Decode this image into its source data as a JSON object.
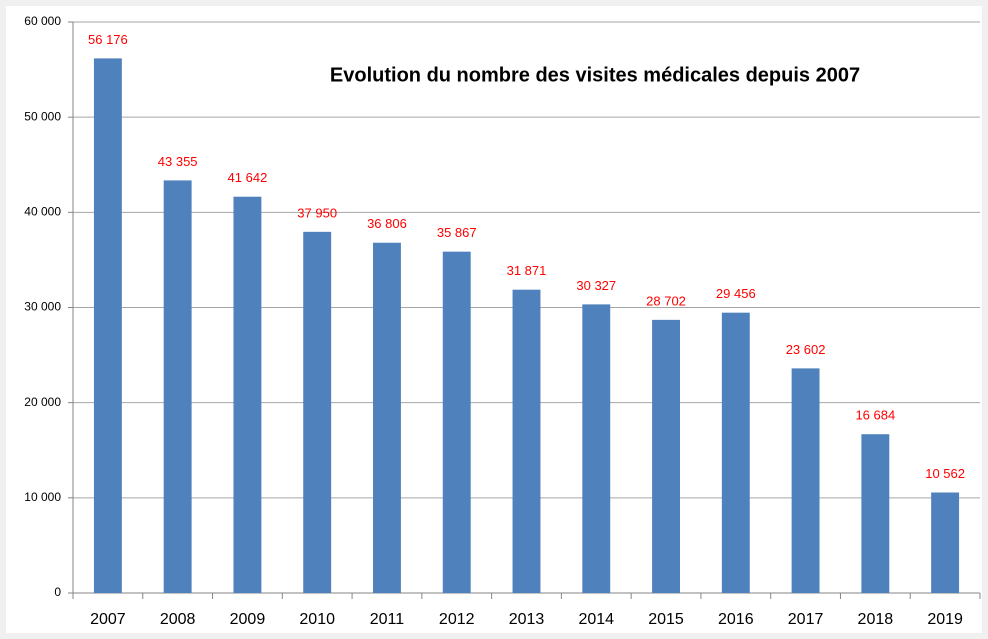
{
  "chart_data": {
    "type": "bar",
    "title": "Evolution du nombre des visites médicales depuis 2007",
    "categories": [
      "2007",
      "2008",
      "2009",
      "2010",
      "2011",
      "2012",
      "2013",
      "2014",
      "2015",
      "2016",
      "2017",
      "2018",
      "2019"
    ],
    "values": [
      56176,
      43355,
      41642,
      37950,
      36806,
      35867,
      31871,
      30327,
      28702,
      29456,
      23602,
      16684,
      10562
    ],
    "value_labels": [
      "56 176",
      "43 355",
      "41 642",
      "37 950",
      "36 806",
      "35 867",
      "31 871",
      "30 327",
      "28 702",
      "29 456",
      "23 602",
      "16 684",
      "10 562"
    ],
    "color": "#4f81bd",
    "value_label_color": "#ff0000",
    "ylim": [
      0,
      60000
    ],
    "yticks": [
      0,
      {
        "value": 10000,
        "label": "10 000"
      },
      {
        "value": 20000,
        "label": "20 000"
      },
      {
        "value": 30000,
        "label": "30 000"
      },
      {
        "value": 40000,
        "label": "40 000"
      },
      {
        "value": 50000,
        "label": "50 000"
      },
      {
        "value": 60000,
        "label": "60 000"
      }
    ],
    "grid": true
  }
}
